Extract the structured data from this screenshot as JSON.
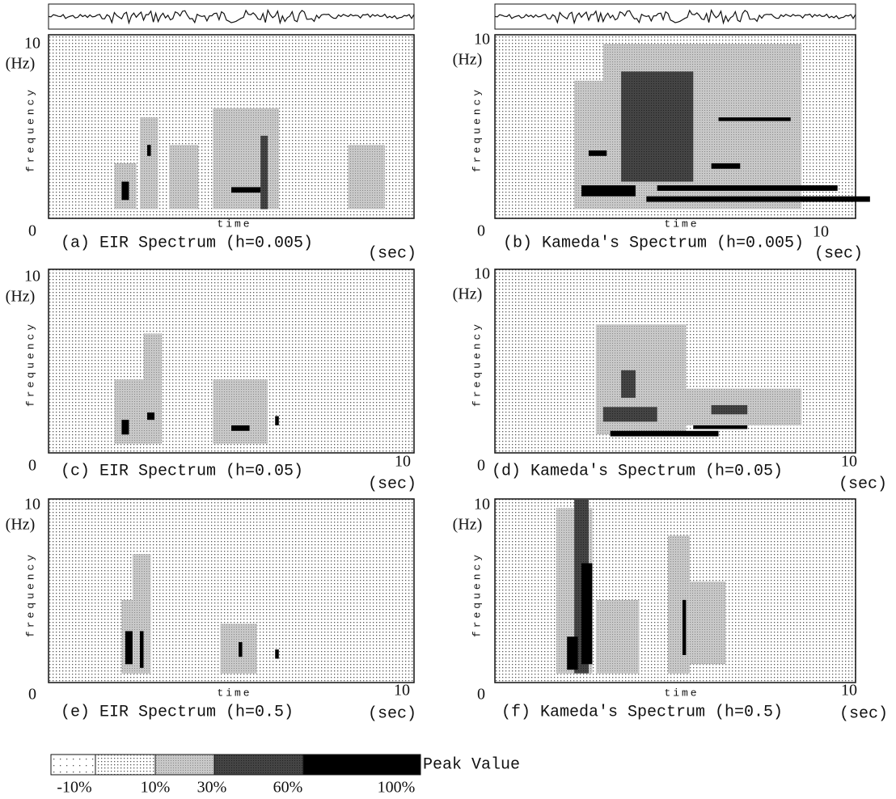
{
  "panels": [
    {
      "ymax": "10",
      "yunit": "(Hz)",
      "ylabel": "frequency",
      "origin": "0",
      "xlabel": "time",
      "caption": "(a) EIR Spectrum (h=0.005)",
      "xunit": "(sec)"
    },
    {
      "ymax": "10",
      "yunit": "(Hz)",
      "ylabel": "frequency",
      "origin": "0",
      "xlabel": "time",
      "caption": "(b) Kameda's Spectrum (h=0.005)",
      "xmax": "10",
      "xunit": "(sec)"
    },
    {
      "ymax": "10",
      "yunit": "(Hz)",
      "ylabel": "frequency",
      "origin": "0",
      "caption": "(c) EIR Spectrum (h=0.05)",
      "xmax": "10",
      "xunit": "(sec)"
    },
    {
      "ymax": "10",
      "yunit": "(Hz)",
      "ylabel": "frequency",
      "origin": "0",
      "caption": "(d) Kameda's Spectrum (h=0.05)",
      "xmax": "10",
      "xunit": "(sec)"
    },
    {
      "ymax": "10",
      "yunit": "(Hz)",
      "ylabel": "frequency",
      "origin": "0",
      "xlabel": "time",
      "caption": "(e) EIR Spectrum (h=0.5)",
      "xmax": "10",
      "xunit": "(sec)"
    },
    {
      "ymax": "10",
      "yunit": "(Hz)",
      "ylabel": "frequency",
      "origin": "0",
      "xlabel": "time",
      "caption": "(f) Kameda's Spectrum (h=0.5)",
      "xmax": "10",
      "xunit": "(sec)"
    }
  ],
  "legend": {
    "title": "Peak Value",
    "labels": [
      "-10%",
      "10%",
      "30%",
      "60%",
      "100%"
    ]
  }
}
